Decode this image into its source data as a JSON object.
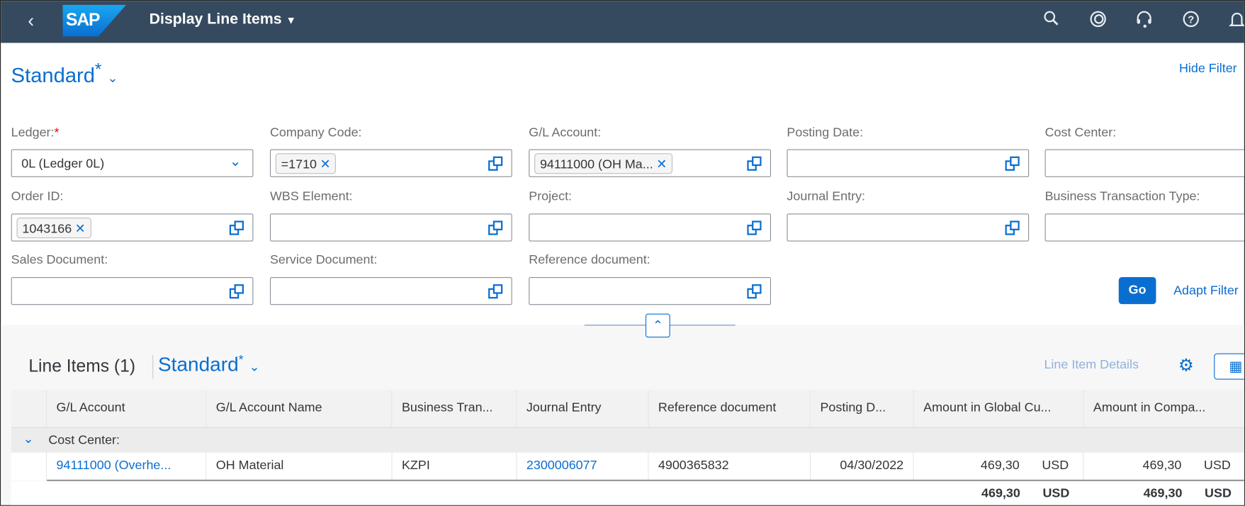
{
  "shell": {
    "title": "Display Line Items",
    "logo": "SAP",
    "icons": [
      "back-icon",
      "search-icon",
      "copilot-icon",
      "headset-icon",
      "help-icon",
      "bell-icon"
    ]
  },
  "variant": {
    "name": "Standard",
    "modified": "*",
    "hide_filter": "Hide Filter"
  },
  "filters": [
    {
      "label": "Ledger:",
      "required": "*",
      "value": "0L (Ledger 0L)",
      "type": "select"
    },
    {
      "label": "Company Code:",
      "token": "=1710"
    },
    {
      "label": "G/L Account:",
      "token": "94111000 (OH Ma..."
    },
    {
      "label": "Posting Date:"
    },
    {
      "label": "Cost Center:"
    },
    {
      "label": "Order ID:",
      "token": "1043166"
    },
    {
      "label": "WBS Element:"
    },
    {
      "label": "Project:"
    },
    {
      "label": "Journal Entry:"
    },
    {
      "label": "Business Transaction Type:"
    },
    {
      "label": "Sales Document:"
    },
    {
      "label": "Service Document:"
    },
    {
      "label": "Reference document:"
    }
  ],
  "actions": {
    "go": "Go",
    "adapt": "Adapt Filter"
  },
  "table": {
    "title": "Line Items (1)",
    "variant": "Standard",
    "modified": "*",
    "details": "Line Item Details",
    "columns": [
      "G/L Account",
      "G/L Account Name",
      "Business Tran...",
      "Journal Entry",
      "Reference document",
      "Posting D...",
      "Amount in Global Cu...",
      "Amount in Compa..."
    ],
    "group": "Cost Center:",
    "row": {
      "gl": "94111000 (Overhe...",
      "name": "OH Material",
      "btt": "KZPI",
      "je": "2300006077",
      "ref": "4900365832",
      "date": "04/30/2022",
      "amt1": "469,30",
      "cur1": "USD",
      "amt2": "469,30",
      "cur2": "USD"
    },
    "total": {
      "amt1": "469,30",
      "cur1": "USD",
      "amt2": "469,30",
      "cur2": "USD"
    }
  },
  "colors": {
    "shell": "#354a5f",
    "accent": "#0a6ed1"
  }
}
